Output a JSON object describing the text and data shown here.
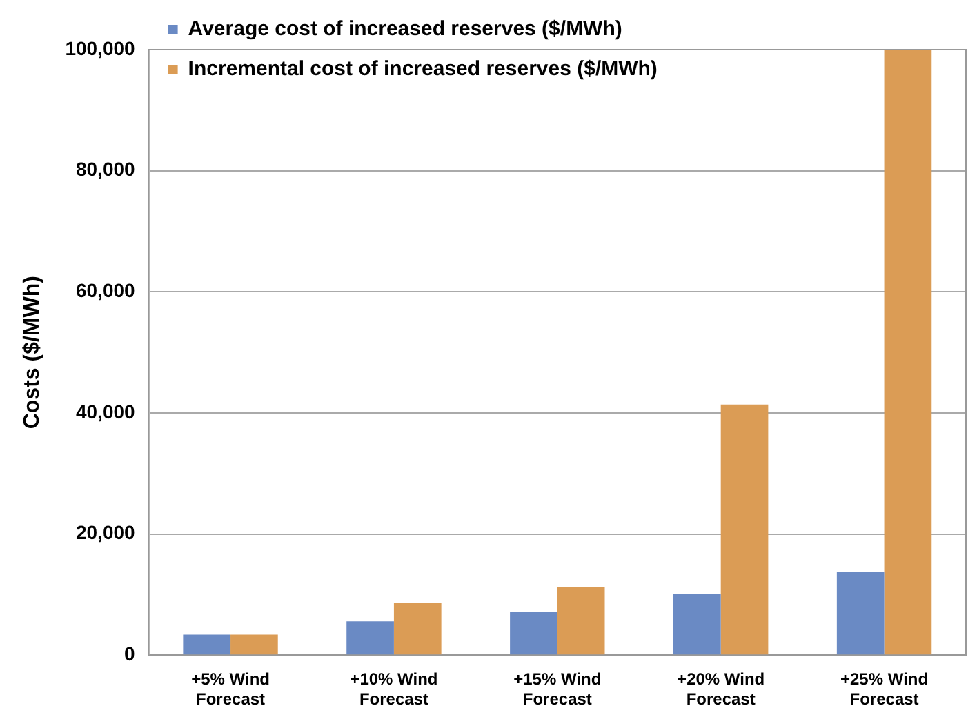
{
  "chart_data": {
    "type": "bar",
    "ylabel": "Costs ($/MWh)",
    "categories": [
      "+5% Wind Forecast",
      "+10% Wind Forecast",
      "+15% Wind Forecast",
      "+20% Wind Forecast",
      "+25% Wind Forecast"
    ],
    "series": [
      {
        "name": "Average cost of increased reserves ($/MWh)",
        "color": "#6a8ac4",
        "values": [
          3400,
          5600,
          7100,
          10100,
          13700
        ]
      },
      {
        "name": "Incremental cost of increased reserves ($/MWh)",
        "color": "#db9c55",
        "values": [
          3400,
          8700,
          11200,
          41400,
          100000
        ]
      }
    ],
    "ylim": [
      0,
      100000
    ],
    "yticks": [
      {
        "value": 0,
        "label": "0"
      },
      {
        "value": 20000,
        "label": "20,000"
      },
      {
        "value": 40000,
        "label": "40,000"
      },
      {
        "value": 60000,
        "label": "60,000"
      },
      {
        "value": 80000,
        "label": "80,000"
      },
      {
        "value": 100000,
        "label": "100,000"
      }
    ],
    "grid": "y",
    "legend": "top left"
  }
}
